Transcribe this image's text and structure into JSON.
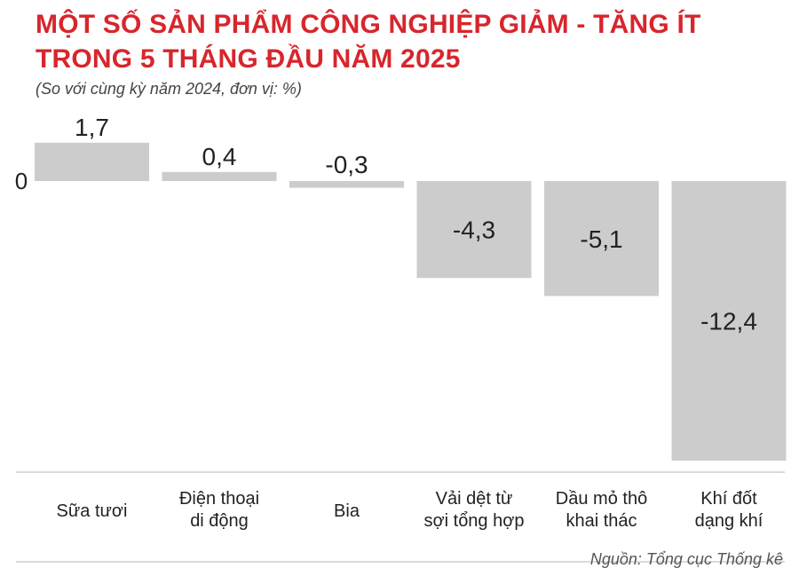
{
  "title_line1": "MỘT SỐ SẢN PHẨM CÔNG NGHIỆP GIẢM - TĂNG ÍT",
  "title_line2": "TRONG 5 THÁNG ĐẦU NĂM 2025",
  "subtitle": "(So với cùng kỳ năm 2024, đơn vị: %)",
  "source": "Nguồn: Tổng cục Thống kê",
  "colors": {
    "title": "#d7262c",
    "bar": "#cccccc",
    "text": "#222222",
    "axis": "#cfcfcf"
  },
  "chart_data": {
    "type": "bar",
    "zero_label": "0",
    "categories": [
      [
        "Sữa tươi"
      ],
      [
        "Điện thoại",
        "di động"
      ],
      [
        "Bia"
      ],
      [
        "Vải dệt từ",
        "sợi tổng hợp"
      ],
      [
        "Dầu mỏ thô",
        "khai thác"
      ],
      [
        "Khí đốt",
        "dạng khí"
      ]
    ],
    "values": [
      1.7,
      0.4,
      -0.3,
      -4.3,
      -5.1,
      -12.4
    ],
    "value_labels": [
      "1,7",
      "0,4",
      "-0,3",
      "-4,3",
      "-5,1",
      "-12,4"
    ],
    "ylim": [
      -13,
      2.2
    ],
    "grid": false,
    "legend": "none"
  }
}
